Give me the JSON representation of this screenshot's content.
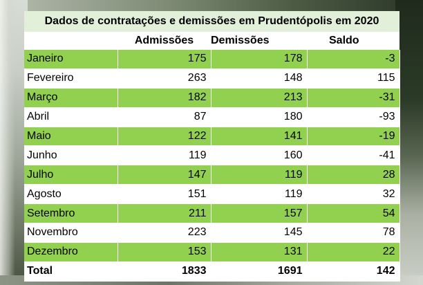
{
  "chart_data": {
    "type": "table",
    "title": "Dados de contratações e demissões em Prudentópolis em 2020",
    "columns": [
      "",
      "Admissões",
      "Demissões",
      "Saldo"
    ],
    "rows": [
      {
        "month": "Janeiro",
        "admissoes": "175",
        "demissoes": "178",
        "saldo": "-3"
      },
      {
        "month": "Fevereiro",
        "admissoes": "263",
        "demissoes": "148",
        "saldo": "115"
      },
      {
        "month": "Março",
        "admissoes": "182",
        "demissoes": "213",
        "saldo": "-31"
      },
      {
        "month": "Abril",
        "admissoes": "87",
        "demissoes": "180",
        "saldo": "-93"
      },
      {
        "month": "Maio",
        "admissoes": "122",
        "demissoes": "141",
        "saldo": "-19"
      },
      {
        "month": "Junho",
        "admissoes": "119",
        "demissoes": "160",
        "saldo": "-41"
      },
      {
        "month": "Julho",
        "admissoes": "147",
        "demissoes": "119",
        "saldo": "28"
      },
      {
        "month": "Agosto",
        "admissoes": "151",
        "demissoes": "119",
        "saldo": "32"
      },
      {
        "month": "Setembro",
        "admissoes": "211",
        "demissoes": "157",
        "saldo": "54"
      },
      {
        "month": "Novembro",
        "admissoes": "223",
        "demissoes": "145",
        "saldo": "78"
      },
      {
        "month": "Dezembro",
        "admissoes": "153",
        "demissoes": "131",
        "saldo": "22"
      }
    ],
    "total": {
      "label": "Total",
      "admissoes": "1833",
      "demissoes": "1691",
      "saldo": "142"
    }
  },
  "colors": {
    "title_background": "#e2efd9",
    "band_green": "#92d050",
    "band_white": "#ffffff"
  }
}
